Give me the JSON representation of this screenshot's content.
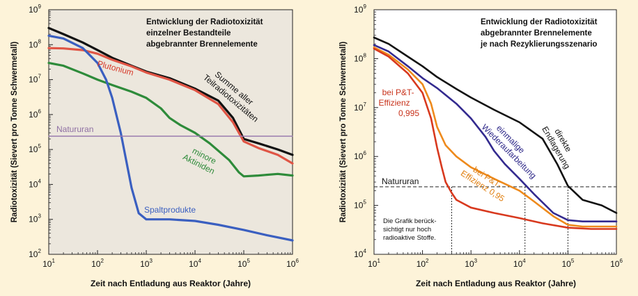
{
  "figure": {
    "background": "#fdf3d9"
  },
  "chart_data": [
    {
      "type": "line",
      "title": "Entwicklung der Radiotoxizität einzelner Bestandteile abgebrannter Brennelemente",
      "title_lines": [
        "Entwicklung der Radiotoxizität",
        "einzelner Bestandteile",
        "abgebrannter Brennelemente"
      ],
      "xlabel": "Zeit nach Entladung aus Reaktor (Jahre)",
      "ylabel": "Radiotoxizität (Sievert pro Tonne Schwermetall)",
      "xscale": "log",
      "yscale": "log",
      "xlim": [
        10,
        1000000
      ],
      "ylim": [
        100,
        1000000000
      ],
      "panel_background": "#ece7dd",
      "grid": false,
      "series": [
        {
          "name": "Summe aller Teilradiotoxizitäten",
          "color": "#111111",
          "x": [
            10,
            20,
            50,
            100,
            200,
            500,
            1000,
            3000,
            10000,
            30000,
            60000,
            100000,
            200000,
            500000,
            1000000
          ],
          "y": [
            300000000,
            200000000,
            115000000,
            70000000,
            42000000,
            25000000,
            17000000,
            11000000,
            5500000,
            2500000,
            800000,
            200000,
            150000,
            100000,
            70000
          ]
        },
        {
          "name": "Plutonium",
          "color": "#e05545",
          "x": [
            10,
            20,
            50,
            100,
            200,
            500,
            1000,
            3000,
            10000,
            30000,
            60000,
            100000,
            200000,
            500000,
            1000000
          ],
          "y": [
            80000000,
            78000000,
            70000000,
            55000000,
            37000000,
            24000000,
            16000000,
            10000000,
            5000000,
            2000000,
            600000,
            170000,
            110000,
            70000,
            40000
          ]
        },
        {
          "name": "minore Aktiniden",
          "color": "#2e8b3a",
          "x": [
            10,
            20,
            50,
            100,
            200,
            500,
            1000,
            2000,
            3000,
            5000,
            10000,
            20000,
            50000,
            80000,
            100000,
            200000,
            500000,
            1000000
          ],
          "y": [
            30000000,
            25000000,
            15000000,
            10000000,
            7000000,
            4500000,
            3000000,
            1500000,
            800000,
            500000,
            300000,
            150000,
            50000,
            22000,
            17000,
            18000,
            20000,
            18000
          ]
        },
        {
          "name": "Spaltprodukte",
          "color": "#3a5fc0",
          "x": [
            10,
            20,
            50,
            100,
            150,
            200,
            300,
            500,
            700,
            1000,
            3000,
            10000,
            30000,
            100000,
            300000,
            1000000
          ],
          "y": [
            180000000,
            150000000,
            80000000,
            30000000,
            10000000,
            3000000,
            300000,
            8000,
            1500,
            1000,
            1000,
            900,
            700,
            500,
            350,
            250
          ]
        },
        {
          "name": "Natururan",
          "color": "#9a7cae",
          "x": [
            10,
            1000000
          ],
          "y": [
            240000,
            240000
          ]
        }
      ],
      "labels": {
        "summe": [
          "Summe aller",
          "Teilradiotoxizitäten"
        ],
        "plutonium": "Plutonium",
        "natururan": "Natururan",
        "minore": [
          "minore",
          "Aktiniden"
        ],
        "spalt": "Spaltprodukte"
      },
      "xticks": [
        {
          "value": 10,
          "base": "10",
          "exp": "1"
        },
        {
          "value": 100,
          "base": "10",
          "exp": "2"
        },
        {
          "value": 1000,
          "base": "10",
          "exp": "3"
        },
        {
          "value": 10000,
          "base": "10",
          "exp": "4"
        },
        {
          "value": 100000,
          "base": "10",
          "exp": "5"
        },
        {
          "value": 1000000,
          "base": "10",
          "exp": "6"
        }
      ],
      "yticks": [
        {
          "value": 100,
          "base": "10",
          "exp": "2"
        },
        {
          "value": 1000,
          "base": "10",
          "exp": "3"
        },
        {
          "value": 10000,
          "base": "10",
          "exp": "4"
        },
        {
          "value": 100000,
          "base": "10",
          "exp": "5"
        },
        {
          "value": 1000000,
          "base": "10",
          "exp": "6"
        },
        {
          "value": 10000000,
          "base": "10",
          "exp": "7"
        },
        {
          "value": 100000000,
          "base": "10",
          "exp": "8"
        },
        {
          "value": 1000000000,
          "base": "10",
          "exp": "9"
        }
      ]
    },
    {
      "type": "line",
      "title": "Entwicklung der Radiotoxizität abgebrannter Brennelemente je nach Rezyklierungsszenario",
      "title_lines": [
        "Entwicklung der Radiotoxizität",
        "abgebrannter Brennelemente",
        "je nach Rezyklierungsszenario"
      ],
      "xlabel": "Zeit nach Entladung aus Reaktor (Jahre)",
      "ylabel": "Radiotoxizität (Sievert pro Tonne Schwermetall)",
      "xscale": "log",
      "yscale": "log",
      "xlim": [
        10,
        1000000
      ],
      "ylim": [
        10000,
        1000000000
      ],
      "panel_background": "#ffffff",
      "grid": false,
      "series": [
        {
          "name": "direkte Endlagerung",
          "color": "#111111",
          "x": [
            10,
            20,
            50,
            100,
            200,
            500,
            1000,
            3000,
            10000,
            30000,
            60000,
            100000,
            200000,
            500000,
            1000000
          ],
          "y": [
            270000000,
            200000000,
            110000000,
            70000000,
            42000000,
            24000000,
            16000000,
            9000000,
            5000000,
            2300000,
            700000,
            250000,
            130000,
            100000,
            70000
          ]
        },
        {
          "name": "einmalige Wiederaufarbeitung",
          "color": "#332a8f",
          "x": [
            10,
            20,
            50,
            100,
            200,
            500,
            1000,
            2000,
            3000,
            5000,
            10000,
            20000,
            50000,
            100000,
            200000,
            500000,
            1000000
          ],
          "y": [
            190000000,
            140000000,
            70000000,
            40000000,
            25000000,
            12000000,
            6000000,
            2500000,
            1300000,
            700000,
            350000,
            170000,
            70000,
            50000,
            47000,
            47000,
            47000
          ]
        },
        {
          "name": "bei P&T-Effizienz 0,95",
          "color": "#ee8a1c",
          "x": [
            10,
            20,
            50,
            100,
            150,
            200,
            300,
            500,
            1000,
            3000,
            10000,
            20000,
            50000,
            100000,
            200000,
            500000,
            1000000
          ],
          "y": [
            170000000,
            120000000,
            60000000,
            30000000,
            12000000,
            4000000,
            1700000,
            1000000,
            600000,
            350000,
            200000,
            120000,
            60000,
            40000,
            37000,
            37000,
            37000
          ]
        },
        {
          "name": "bei P&T-Effizienz 0,995",
          "color": "#d8391e",
          "x": [
            10,
            20,
            50,
            100,
            150,
            200,
            250,
            300,
            400,
            500,
            1000,
            3000,
            10000,
            30000,
            100000,
            300000,
            1000000
          ],
          "y": [
            160000000,
            110000000,
            50000000,
            20000000,
            6000000,
            1500000,
            600000,
            300000,
            180000,
            130000,
            90000,
            70000,
            55000,
            43000,
            35000,
            33000,
            33000
          ]
        }
      ],
      "natururan": {
        "name": "Natururan",
        "y": 240000
      },
      "crossings": [
        400,
        13000,
        100000
      ],
      "labels": {
        "direkte": [
          "direkte",
          "Endlagerung"
        ],
        "einmalige": [
          "einmalige",
          "Wiederaufarbeitung"
        ],
        "pt95": [
          "bei P&T-",
          "Effizienz 0,95"
        ],
        "pt995": [
          "bei P&T-",
          "Effizienz",
          "0,995"
        ],
        "natururan": "Natururan",
        "note": [
          "Die Grafik berück-",
          "sichtigt nur hoch",
          "radioaktive Stoffe."
        ]
      },
      "xticks": [
        {
          "value": 10,
          "base": "10",
          "exp": "1"
        },
        {
          "value": 100,
          "base": "10",
          "exp": "2"
        },
        {
          "value": 1000,
          "base": "10",
          "exp": "3"
        },
        {
          "value": 10000,
          "base": "10",
          "exp": "4"
        },
        {
          "value": 100000,
          "base": "10",
          "exp": "5"
        },
        {
          "value": 1000000,
          "base": "10",
          "exp": "6"
        }
      ],
      "yticks": [
        {
          "value": 10000,
          "base": "10",
          "exp": "4"
        },
        {
          "value": 100000,
          "base": "10",
          "exp": "5"
        },
        {
          "value": 1000000,
          "base": "10",
          "exp": "6"
        },
        {
          "value": 10000000,
          "base": "10",
          "exp": "7"
        },
        {
          "value": 100000000,
          "base": "10",
          "exp": "8"
        },
        {
          "value": 1000000000,
          "base": "10",
          "exp": "9"
        }
      ]
    }
  ]
}
